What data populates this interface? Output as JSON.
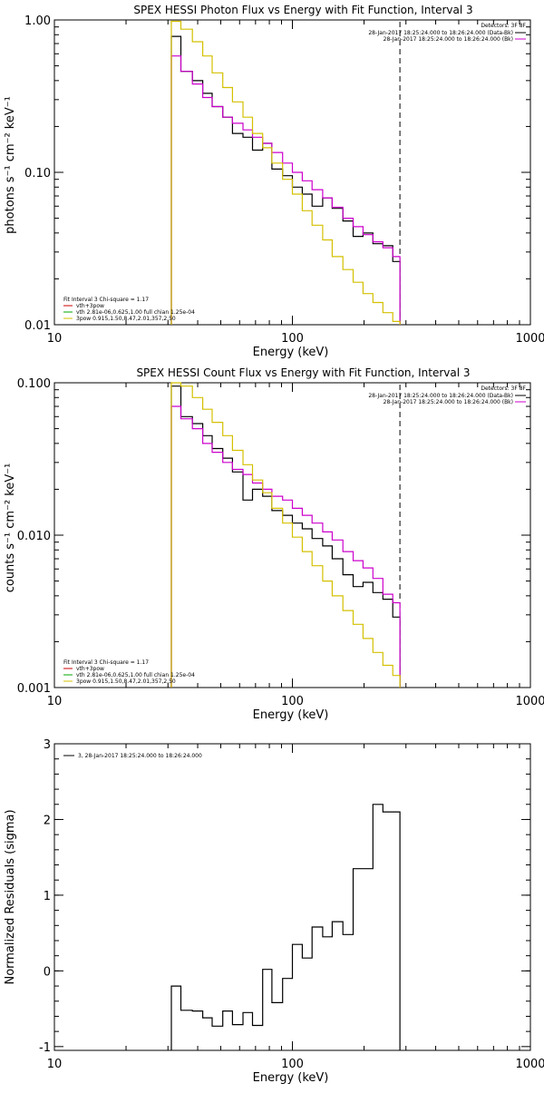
{
  "page": {
    "background": "#ffffff"
  },
  "chart_data": [
    {
      "type": "line",
      "title": "SPEX HESSI Photon Flux vs Energy with Fit Function, Interval 3",
      "xlabel": "Energy (keV)",
      "ylabel": "photons s⁻¹ cm⁻² keV⁻¹",
      "xscale": "log",
      "yscale": "log",
      "xlim": [
        10,
        1000
      ],
      "ylim": [
        0.01,
        1.0
      ],
      "xticks": [
        "10",
        "100",
        "1000"
      ],
      "yticks": [
        "0.01",
        "0.10",
        "1.00"
      ],
      "legend": {
        "placement": "top-right",
        "header": "Detectors: 3F 8F",
        "entries": [
          {
            "label": "28-Jan-2017 18:25:24.000 to 18:26:24.000 (Data-Bk)",
            "color": "#000000"
          },
          {
            "label": "28-Jan-2017 18:25:24.000 to 18:26:24.000 (Bk)",
            "color": "#cc00cc"
          }
        ]
      },
      "fit_info": {
        "title": "Fit Interval 3   Chi-square = 1.17",
        "entries": [
          {
            "label": "vth+3pow",
            "color": "#cc0000"
          },
          {
            "label": "vth 2.81e-06,0.625,1.00  full chian 1.25e-04",
            "color": "#00aa00"
          },
          {
            "label": "3pow 0.915,1.50,8.47,2.01,357,2.50",
            "color": "#d4c000"
          }
        ]
      },
      "markers": {
        "fit_low": 31,
        "fit_high": 283
      },
      "bin_edges": [
        31,
        34,
        38,
        42,
        46,
        51,
        56,
        62,
        68,
        75,
        82,
        91,
        100,
        110,
        121,
        134,
        147,
        163,
        180,
        198,
        218,
        240,
        264,
        283
      ],
      "series": [
        {
          "name": "28-Jan-2017 18:25:24.000 to 18:26:24.000 (Data-Bk)",
          "color": "#000000",
          "values": [
            0.78,
            0.46,
            0.4,
            0.33,
            0.27,
            0.23,
            0.18,
            0.17,
            0.14,
            0.155,
            0.105,
            0.095,
            0.08,
            0.072,
            0.06,
            0.068,
            0.058,
            0.048,
            0.038,
            0.04,
            0.034,
            0.033,
            0.026
          ]
        },
        {
          "name": "28-Jan-2017 18:25:24.000 to 18:26:24.000 (Bk)",
          "color": "#cc00cc",
          "values": [
            0.58,
            0.46,
            0.38,
            0.31,
            0.27,
            0.23,
            0.21,
            0.19,
            0.17,
            0.155,
            0.135,
            0.115,
            0.1,
            0.088,
            0.077,
            0.068,
            0.059,
            0.05,
            0.044,
            0.039,
            0.035,
            0.032,
            0.028
          ]
        },
        {
          "name": "3pow",
          "color": "#d4c000",
          "values": [
            0.98,
            0.87,
            0.72,
            0.58,
            0.45,
            0.36,
            0.29,
            0.23,
            0.18,
            0.145,
            0.115,
            0.09,
            0.072,
            0.056,
            0.045,
            0.036,
            0.028,
            0.023,
            0.019,
            0.016,
            0.014,
            0.012,
            0.0105
          ]
        }
      ]
    },
    {
      "type": "line",
      "title": "SPEX HESSI Count Flux vs Energy with Fit Function, Interval 3",
      "xlabel": "Energy (keV)",
      "ylabel": "counts s⁻¹ cm⁻² keV⁻¹",
      "xscale": "log",
      "yscale": "log",
      "xlim": [
        10,
        1000
      ],
      "ylim": [
        0.001,
        0.1
      ],
      "xticks": [
        "10",
        "100",
        "1000"
      ],
      "yticks": [
        "0.001",
        "0.010",
        "0.100"
      ],
      "legend": {
        "placement": "top-right",
        "header": "Detectors: 3F 8F",
        "entries": [
          {
            "label": "28-Jan-2017 18:25:24.000 to 18:26:24.000 (Data-Bk)",
            "color": "#000000"
          },
          {
            "label": "28-Jan-2017 18:25:24.000 to 18:26:24.000 (Bk)",
            "color": "#cc00cc"
          }
        ]
      },
      "fit_info": {
        "title": "Fit Interval 3   Chi-square = 1.17",
        "entries": [
          {
            "label": "vth+3pow",
            "color": "#cc0000"
          },
          {
            "label": "vth 2.81e-06,0.625,1.00  full chian 1.25e-04",
            "color": "#00aa00"
          },
          {
            "label": "3pow 0.915,1.50,8.47,2.01,357,2.50",
            "color": "#d4c000"
          }
        ]
      },
      "markers": {
        "fit_low": 31,
        "fit_high": 283
      },
      "bin_edges": [
        31,
        34,
        38,
        42,
        46,
        51,
        56,
        62,
        68,
        75,
        82,
        91,
        100,
        110,
        121,
        134,
        147,
        163,
        180,
        198,
        218,
        240,
        264,
        283
      ],
      "series": [
        {
          "name": "28-Jan-2017 18:25:24.000 to 18:26:24.000 (Data-Bk)",
          "color": "#000000",
          "values": [
            0.095,
            0.06,
            0.054,
            0.045,
            0.037,
            0.032,
            0.026,
            0.017,
            0.02,
            0.018,
            0.0145,
            0.0135,
            0.012,
            0.011,
            0.0095,
            0.0085,
            0.007,
            0.0055,
            0.0046,
            0.0049,
            0.0042,
            0.0038,
            0.0029
          ]
        },
        {
          "name": "28-Jan-2017 18:25:24.000 to 18:26:24.000 (Bk)",
          "color": "#cc00cc",
          "values": [
            0.07,
            0.058,
            0.05,
            0.04,
            0.035,
            0.03,
            0.027,
            0.025,
            0.022,
            0.02,
            0.018,
            0.017,
            0.015,
            0.0135,
            0.012,
            0.0105,
            0.0093,
            0.0078,
            0.0068,
            0.0061,
            0.0052,
            0.0041,
            0.0036
          ]
        },
        {
          "name": "3pow",
          "color": "#d4c000",
          "values": [
            0.1,
            0.095,
            0.08,
            0.067,
            0.055,
            0.045,
            0.036,
            0.029,
            0.023,
            0.019,
            0.015,
            0.012,
            0.0097,
            0.0078,
            0.0063,
            0.005,
            0.004,
            0.0032,
            0.0026,
            0.0021,
            0.0017,
            0.0014,
            0.0012
          ]
        }
      ]
    },
    {
      "type": "line",
      "title": "",
      "xlabel": "Energy (keV)",
      "ylabel": "Normalized Residuals (sigma)",
      "xscale": "log",
      "yscale": "linear",
      "xlim": [
        10,
        1000
      ],
      "ylim": [
        -1.05,
        3
      ],
      "xticks": [
        "10",
        "100",
        "1000"
      ],
      "yticks": [
        "-1",
        "0",
        "1",
        "2",
        "3"
      ],
      "legend": {
        "placement": "top-left",
        "entries": [
          {
            "label": "3, 28-Jan-2017 18:25:24.000 to 18:26:24.000",
            "color": "#000000"
          }
        ]
      },
      "bin_edges": [
        31,
        34,
        38,
        42,
        46,
        51,
        56,
        62,
        68,
        75,
        82,
        91,
        100,
        110,
        121,
        134,
        147,
        163,
        180,
        198,
        218,
        240,
        264,
        283
      ],
      "series": [
        {
          "name": "3, 28-Jan-2017 18:25:24.000 to 18:26:24.000",
          "color": "#000000",
          "values": [
            -0.2,
            -0.52,
            -0.53,
            -0.62,
            -0.73,
            -0.53,
            -0.71,
            -0.55,
            -0.72,
            0.02,
            -0.42,
            -0.1,
            0.35,
            0.17,
            0.58,
            0.45,
            0.65,
            0.48,
            1.35,
            1.35,
            2.2,
            2.1,
            2.1
          ]
        }
      ]
    }
  ]
}
